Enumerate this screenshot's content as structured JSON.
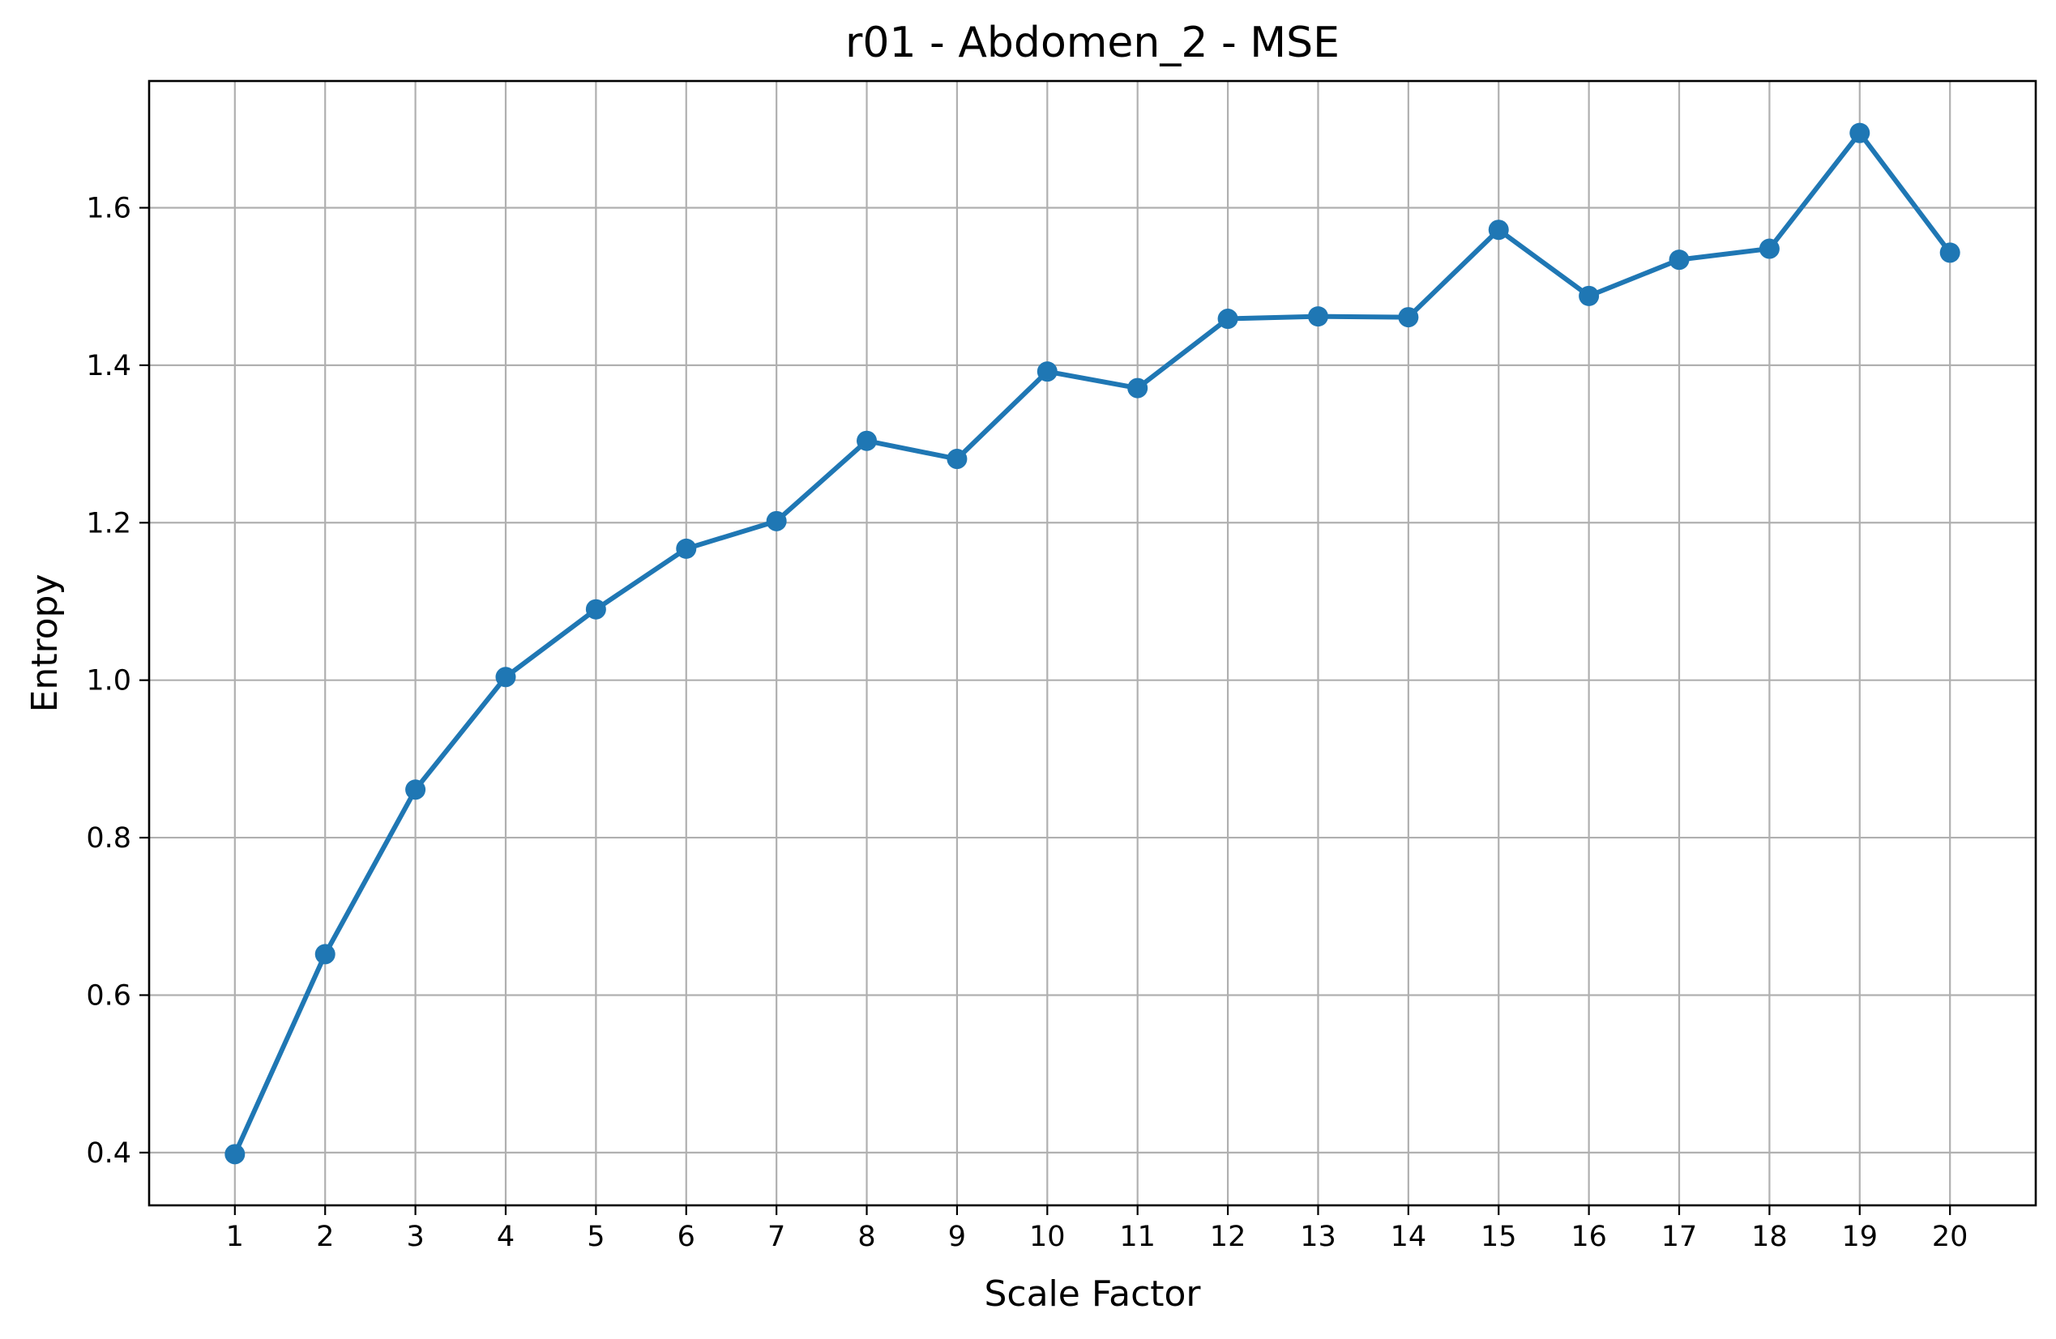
{
  "chart_data": {
    "type": "line",
    "title": "r01 - Abdomen_2 - MSE",
    "xlabel": "Scale Factor",
    "ylabel": "Entropy",
    "x": [
      1,
      2,
      3,
      4,
      5,
      6,
      7,
      8,
      9,
      10,
      11,
      12,
      13,
      14,
      15,
      16,
      17,
      18,
      19,
      20
    ],
    "series": [
      {
        "values": [
          0.398,
          0.652,
          0.861,
          1.004,
          1.09,
          1.167,
          1.202,
          1.304,
          1.281,
          1.392,
          1.371,
          1.459,
          1.462,
          1.461,
          1.572,
          1.488,
          1.534,
          1.548,
          1.695,
          1.543
        ],
        "color": "#1f77b4",
        "marker": "circle"
      }
    ],
    "xticks": [
      "1",
      "2",
      "3",
      "4",
      "5",
      "6",
      "7",
      "8",
      "9",
      "10",
      "11",
      "12",
      "13",
      "14",
      "15",
      "16",
      "17",
      "18",
      "19",
      "20"
    ],
    "yticks": [
      "0.4",
      "0.6",
      "0.8",
      "1.0",
      "1.2",
      "1.4",
      "1.6"
    ],
    "xlim": [
      0.05,
      20.95
    ],
    "ylim": [
      0.333,
      1.761
    ],
    "grid": true,
    "legend": "none"
  }
}
